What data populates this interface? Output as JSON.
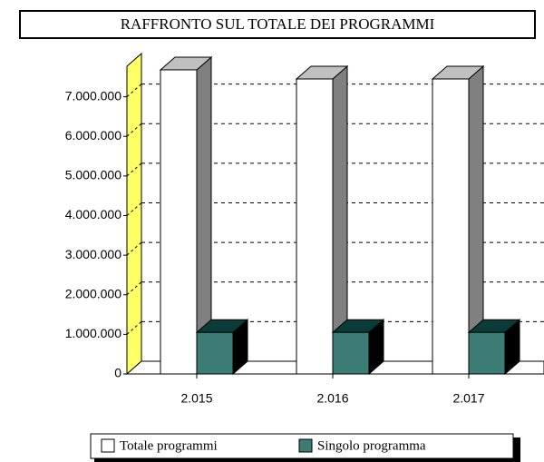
{
  "chart_data": {
    "type": "bar3d",
    "title": "RAFFRONTO SUL TOTALE DEI PROGRAMMI",
    "categories": [
      "2.015",
      "2.016",
      "2.017"
    ],
    "series": [
      {
        "name": "Totale programmi",
        "color": "#ffffff",
        "values": [
          7680000,
          7450000,
          7450000
        ]
      },
      {
        "name": "Singolo programma",
        "color": "#3d7c74",
        "values": [
          1050000,
          1050000,
          1050000
        ]
      }
    ],
    "ylim": [
      0,
      8000000
    ],
    "yticks": [
      0,
      {
        "value": 1000000,
        "label": "1.000.000"
      },
      {
        "value": 2000000,
        "label": "2.000.000"
      },
      {
        "value": 3000000,
        "label": "3.000.000"
      },
      {
        "value": 4000000,
        "label": "4.000.000"
      },
      {
        "value": 5000000,
        "label": "5.000.000"
      },
      {
        "value": 6000000,
        "label": "6.000.000"
      },
      {
        "value": 7000000,
        "label": "7.000.000"
      }
    ],
    "grid": true
  }
}
